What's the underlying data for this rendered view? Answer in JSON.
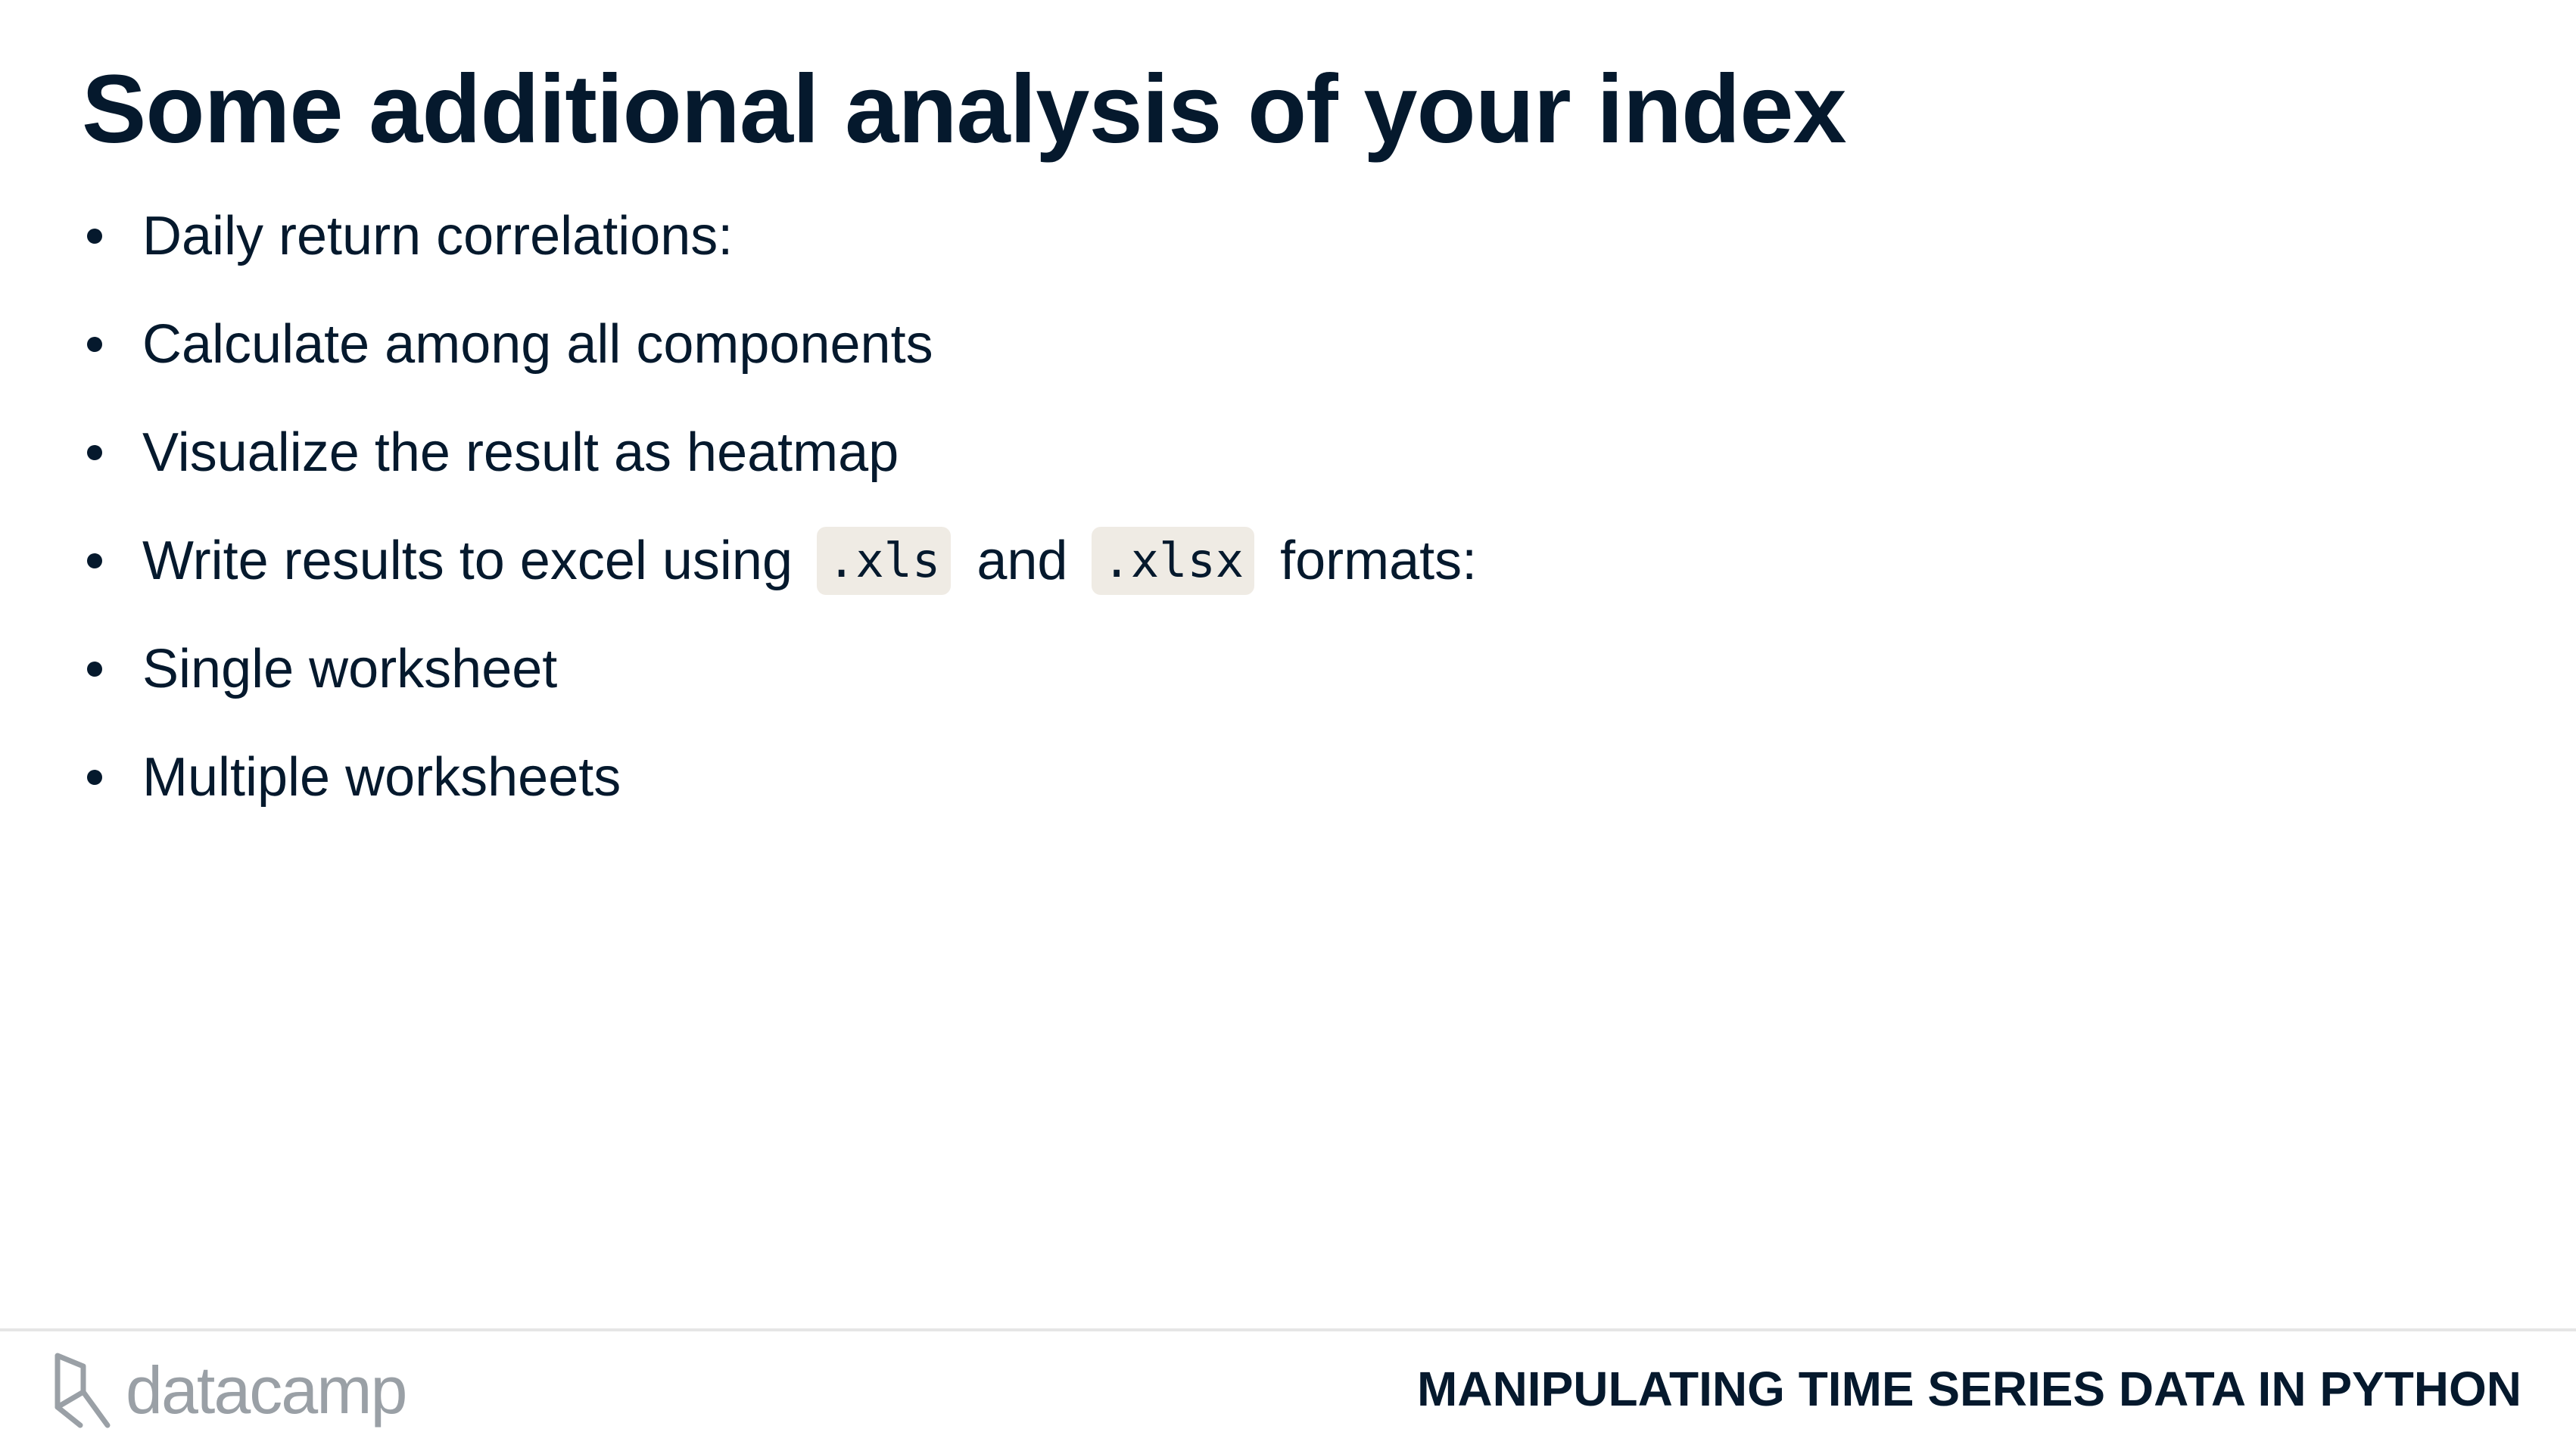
{
  "slide": {
    "title": "Some additional analysis of your index",
    "bullets": [
      {
        "text": "Daily return correlations:"
      },
      {
        "text": "Calculate among all components"
      },
      {
        "text": "Visualize the result as heatmap"
      },
      {
        "before": "Write results to excel using",
        "code1": ".xls",
        "middle": "and",
        "code2": ".xlsx",
        "after": "formats:"
      },
      {
        "text": "Single worksheet"
      },
      {
        "text": "Multiple worksheets"
      }
    ]
  },
  "footer": {
    "logo_text": "datacamp",
    "logo_icon": "datacamp-logo-icon",
    "course_title": "MANIPULATING TIME SERIES DATA IN PYTHON"
  },
  "colors": {
    "text": "#05192d",
    "code_bg": "#efebe4",
    "logo_gray": "#9aa0a6",
    "divider": "#e5e5e5"
  }
}
